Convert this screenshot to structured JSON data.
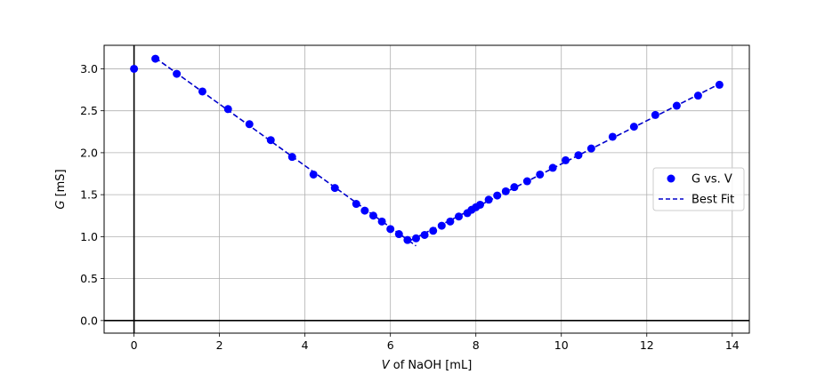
{
  "chart_data": {
    "type": "scatter",
    "xlabel_var": "V",
    "xlabel_rest": " of NaOH [mL]",
    "ylabel_var": "G",
    "ylabel_rest": " [mS]",
    "xlim": [
      -0.7,
      14.4
    ],
    "ylim": [
      -0.15,
      3.28
    ],
    "xticks": [
      0,
      2,
      4,
      6,
      8,
      10,
      12,
      14
    ],
    "yticks": [
      0.0,
      0.5,
      1.0,
      1.5,
      2.0,
      2.5,
      3.0
    ],
    "xtick_labels": [
      "0",
      "2",
      "4",
      "6",
      "8",
      "10",
      "12",
      "14"
    ],
    "ytick_labels": [
      "0.0",
      "0.5",
      "1.0",
      "1.5",
      "2.0",
      "2.5",
      "3.0"
    ],
    "grid": true,
    "zero_lines": true,
    "legend_position": "center-right",
    "series": [
      {
        "name": "G vs. V",
        "style": "markers",
        "color": "#0000ff",
        "points": [
          [
            0.0,
            3.0
          ],
          [
            0.5,
            3.12
          ],
          [
            1.0,
            2.94
          ],
          [
            1.6,
            2.73
          ],
          [
            2.2,
            2.52
          ],
          [
            2.7,
            2.34
          ],
          [
            3.2,
            2.15
          ],
          [
            3.7,
            1.95
          ],
          [
            4.2,
            1.74
          ],
          [
            4.7,
            1.58
          ],
          [
            5.2,
            1.39
          ],
          [
            5.4,
            1.31
          ],
          [
            5.6,
            1.25
          ],
          [
            5.8,
            1.18
          ],
          [
            6.0,
            1.09
          ],
          [
            6.2,
            1.03
          ],
          [
            6.4,
            0.96
          ],
          [
            6.6,
            0.98
          ],
          [
            6.8,
            1.02
          ],
          [
            7.0,
            1.07
          ],
          [
            7.2,
            1.13
          ],
          [
            7.4,
            1.18
          ],
          [
            7.6,
            1.24
          ],
          [
            7.8,
            1.28
          ],
          [
            7.9,
            1.32
          ],
          [
            8.0,
            1.35
          ],
          [
            8.1,
            1.38
          ],
          [
            8.3,
            1.44
          ],
          [
            8.5,
            1.49
          ],
          [
            8.7,
            1.54
          ],
          [
            8.9,
            1.59
          ],
          [
            9.2,
            1.66
          ],
          [
            9.5,
            1.74
          ],
          [
            9.8,
            1.82
          ],
          [
            10.1,
            1.91
          ],
          [
            10.4,
            1.97
          ],
          [
            10.7,
            2.05
          ],
          [
            11.2,
            2.19
          ],
          [
            11.7,
            2.31
          ],
          [
            12.2,
            2.45
          ],
          [
            12.7,
            2.56
          ],
          [
            13.2,
            2.68
          ],
          [
            13.7,
            2.81
          ]
        ]
      },
      {
        "name": "Best Fit",
        "style": "dashed-line",
        "color": "#0000cc",
        "segments": [
          [
            [
              0.5,
              3.13
            ],
            [
              6.6,
              0.89
            ]
          ],
          [
            [
              6.45,
              0.95
            ],
            [
              13.7,
              2.82
            ]
          ]
        ]
      }
    ]
  }
}
